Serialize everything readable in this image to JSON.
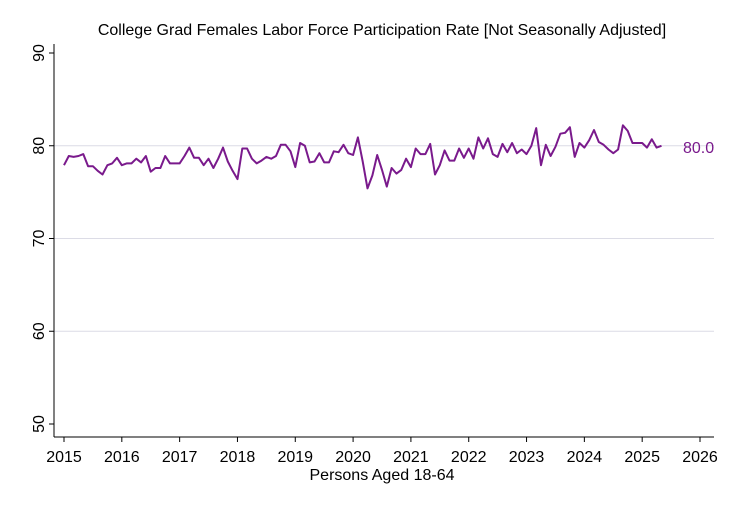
{
  "chart_data": {
    "type": "line",
    "title": "College Grad Females Labor Force Participation Rate [Not Seasonally Adjusted]",
    "xlabel": "Persons Aged 18-64",
    "ylabel": "",
    "xlim": [
      2015,
      2026
    ],
    "ylim": [
      50,
      90
    ],
    "xticks": [
      "2015",
      "2016",
      "2017",
      "2018",
      "2019",
      "2020",
      "2021",
      "2022",
      "2023",
      "2024",
      "2025",
      "2026"
    ],
    "yticks": [
      "50",
      "60",
      "70",
      "80",
      "90"
    ],
    "grid": "horizontal",
    "line_color": "#7a1a8c",
    "last_value_label": "80.0",
    "series": [
      {
        "start": "2015-01",
        "frequency": "monthly",
        "values": [
          77.9,
          78.9,
          78.8,
          78.9,
          79.1,
          77.8,
          77.8,
          77.3,
          76.9,
          77.9,
          78.1,
          78.7,
          77.9,
          78.1,
          78.1,
          78.6,
          78.2,
          78.9,
          77.2,
          77.6,
          77.6,
          78.9,
          78.1,
          78.1,
          78.1,
          78.9,
          79.8,
          78.7,
          78.7,
          77.9,
          78.6,
          77.6,
          78.6,
          79.8,
          78.3,
          77.3,
          76.4,
          79.7,
          79.7,
          78.6,
          78.1,
          78.4,
          78.8,
          78.6,
          78.9,
          80.1,
          80.1,
          79.4,
          77.7,
          80.3,
          80.0,
          78.2,
          78.3,
          79.2,
          78.2,
          78.2,
          79.4,
          79.3,
          80.1,
          79.2,
          79.0,
          80.9,
          78.3,
          75.4,
          76.8,
          79.0,
          77.4,
          75.6,
          77.6,
          77.0,
          77.4,
          78.6,
          77.7,
          79.7,
          79.1,
          79.1,
          80.2,
          76.9,
          77.9,
          79.5,
          78.4,
          78.4,
          79.7,
          78.7,
          79.7,
          78.6,
          80.9,
          79.7,
          80.8,
          79.1,
          78.8,
          80.2,
          79.3,
          80.3,
          79.2,
          79.6,
          79.1,
          80.0,
          81.9,
          77.9,
          80.1,
          78.9,
          79.9,
          81.3,
          81.4,
          82.0,
          78.8,
          80.3,
          79.8,
          80.6,
          81.7,
          80.4,
          80.1,
          79.6,
          79.2,
          79.6,
          82.2,
          81.6,
          80.3,
          80.3,
          80.3,
          79.8,
          80.7,
          79.8,
          80.0
        ]
      }
    ]
  }
}
